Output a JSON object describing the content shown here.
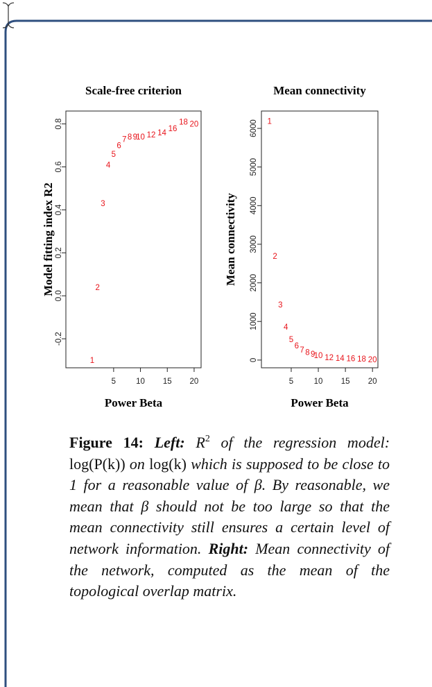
{
  "chart_data": [
    {
      "type": "scatter",
      "title": "Scale-free criterion",
      "xlabel": "Power Beta",
      "ylabel": "Model fitting index R2",
      "x": [
        1,
        2,
        3,
        4,
        5,
        6,
        7,
        8,
        9,
        10,
        12,
        14,
        16,
        18,
        20
      ],
      "values": [
        -0.3,
        0.04,
        0.43,
        0.61,
        0.66,
        0.7,
        0.73,
        0.74,
        0.74,
        0.74,
        0.75,
        0.76,
        0.78,
        0.81,
        0.8
      ],
      "color": "#e8141b",
      "xlim": [
        -3.9,
        21.3
      ],
      "xticks": [
        5,
        10,
        15,
        20
      ],
      "ylim": [
        -0.335,
        0.86
      ],
      "yticks": [
        {
          "value": -0.2,
          "label": "-0.2"
        },
        {
          "value": 0,
          "label": "0.0"
        },
        0.2,
        0.4,
        0.6,
        0.8
      ]
    },
    {
      "type": "scatter",
      "title": "Mean connectivity",
      "xlabel": "Power Beta",
      "ylabel": "Mean connectivity",
      "x": [
        1,
        2,
        3,
        4,
        5,
        6,
        7,
        8,
        9,
        10,
        12,
        14,
        16,
        18,
        20
      ],
      "values": [
        6190,
        2690,
        1440,
        860,
        540,
        375,
        270,
        200,
        160,
        125,
        70,
        50,
        40,
        30,
        20
      ],
      "color": "#e8141b",
      "xlim": [
        -0.5,
        21
      ],
      "xticks": [
        5,
        10,
        15,
        20
      ],
      "ylim": [
        -200,
        6450
      ],
      "yticks": [
        0,
        1000,
        2000,
        3000,
        4000,
        5000,
        6000
      ]
    }
  ],
  "caption": [
    {
      "text": "Figure 14:",
      "style": "bold"
    },
    {
      "text": "Left:",
      "style": "bold-italic"
    },
    {
      "text": "R",
      "style": "math-italic"
    },
    {
      "text": "2",
      "style": "sup"
    },
    {
      "text": "of the regression model:",
      "style": "italic"
    },
    {
      "text": "log(P(k))",
      "style": "math"
    },
    {
      "text": "on",
      "style": "italic"
    },
    {
      "text": "log(k)",
      "style": "math"
    },
    {
      "text": "which is supposed to be close to 1 for a reasonable value of",
      "style": "italic"
    },
    {
      "text": "β.",
      "style": "math-italic"
    },
    {
      "text": "By reasonable, we mean that",
      "style": "italic"
    },
    {
      "text": "β",
      "style": "math-italic"
    },
    {
      "text": "should not be too large so that the mean connectivity still ensures a certain level of network information.",
      "style": "italic"
    },
    {
      "text": "Right:",
      "style": "bold-italic"
    },
    {
      "text": "Mean connectivity of the network, computed as the mean of the topological overlap matrix.",
      "style": "italic"
    }
  ]
}
